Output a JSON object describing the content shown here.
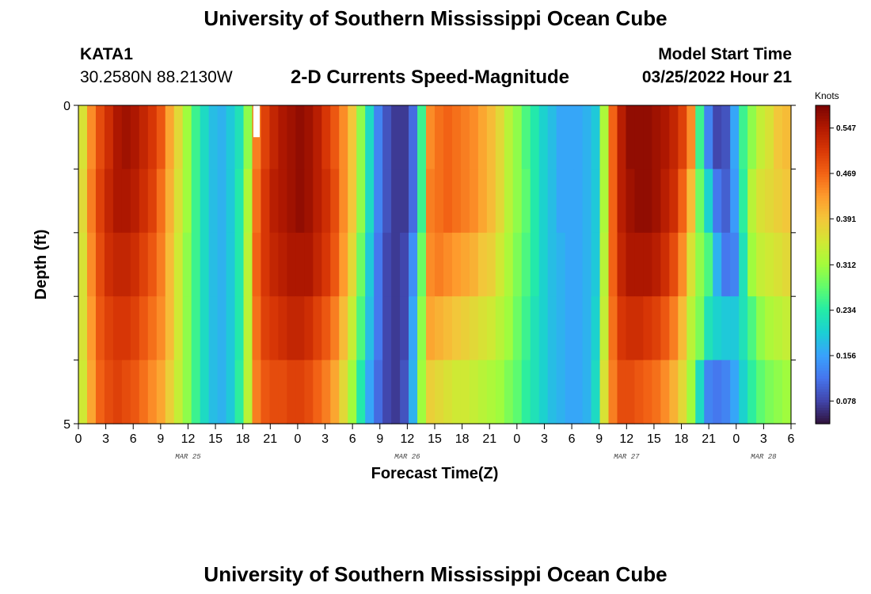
{
  "header": {
    "title": "University of Southern Mississippi Ocean Cube",
    "station_id": "KATA1",
    "coordinates": "30.2580N  88.2130W",
    "chart_title": "2-D Currents Speed-Magnitude",
    "model_start_label": "Model Start Time",
    "model_start_value": "03/25/2022 Hour 21"
  },
  "footer": {
    "title": "University of Southern Mississippi Ocean Cube"
  },
  "colors": {
    "colormap": [
      "#30123b",
      "#4145ab",
      "#4675ed",
      "#39a2fc",
      "#1bcfd4",
      "#24eca6",
      "#61fc6c",
      "#a4fc3b",
      "#d1e834",
      "#f3c63a",
      "#fe9b2d",
      "#f36315",
      "#d93806",
      "#b11901",
      "#7a0402"
    ],
    "gap": "#ffffff"
  },
  "chart_data": {
    "type": "heatmap",
    "title": "2-D Currents Speed-Magnitude",
    "xlabel": "Forecast Time(Z)",
    "ylabel": "Depth (ft)",
    "x_start_hour": 0,
    "x_end_hour": 78,
    "x_tick_step_hours": 3,
    "x_tick_labels": [
      "0",
      "3",
      "6",
      "9",
      "12",
      "15",
      "18",
      "21",
      "0",
      "3",
      "6",
      "9",
      "12",
      "15",
      "18",
      "21",
      "0",
      "3",
      "6",
      "9",
      "12",
      "15",
      "18",
      "21",
      "0",
      "3",
      "6"
    ],
    "date_labels": [
      {
        "hour": 12,
        "text": "MAR 25"
      },
      {
        "hour": 36,
        "text": "MAR 26"
      },
      {
        "hour": 60,
        "text": "MAR 27"
      },
      {
        "hour": 75,
        "text": "MAR 28"
      }
    ],
    "y_range_ft": [
      0,
      5
    ],
    "y_tick_labels": [
      "0",
      "5"
    ],
    "y_minor_ticks": 6,
    "depth_levels": 5,
    "colorbar": {
      "title": "Knots",
      "min": 0.039,
      "max": 0.586,
      "tick_values": [
        0.078,
        0.156,
        0.234,
        0.312,
        0.391,
        0.469,
        0.547
      ],
      "tick_labels": [
        "0.078",
        "0.156",
        "0.234",
        "0.312",
        "0.391",
        "0.469",
        "0.547"
      ]
    },
    "missing_cells": [
      {
        "hour": 20,
        "level": 0
      }
    ],
    "rows": [
      [
        0.36,
        0.44,
        0.49,
        0.52,
        0.55,
        0.56,
        0.55,
        0.53,
        0.51,
        0.48,
        0.42,
        0.37,
        0.31,
        0.25,
        0.21,
        0.18,
        0.17,
        0.19,
        0.22,
        0.3,
        0.45,
        0.5,
        0.53,
        0.55,
        0.56,
        0.57,
        0.56,
        0.54,
        0.51,
        0.48,
        0.44,
        0.39,
        0.3,
        0.21,
        0.13,
        0.09,
        0.07,
        0.07,
        0.11,
        0.25,
        0.44,
        0.46,
        0.47,
        0.46,
        0.45,
        0.44,
        0.42,
        0.4,
        0.37,
        0.33,
        0.3,
        0.26,
        0.23,
        0.2,
        0.18,
        0.16,
        0.16,
        0.16,
        0.17,
        0.19,
        0.32,
        0.47,
        0.54,
        0.57,
        0.57,
        0.57,
        0.56,
        0.55,
        0.53,
        0.5,
        0.44,
        0.25,
        0.13,
        0.08,
        0.09,
        0.16,
        0.25,
        0.3,
        0.34,
        0.36,
        0.39,
        0.4
      ],
      [
        0.37,
        0.45,
        0.5,
        0.53,
        0.55,
        0.55,
        0.54,
        0.52,
        0.5,
        0.46,
        0.41,
        0.36,
        0.31,
        0.25,
        0.21,
        0.18,
        0.17,
        0.19,
        0.23,
        0.32,
        0.46,
        0.51,
        0.54,
        0.55,
        0.56,
        0.57,
        0.56,
        0.54,
        0.52,
        0.49,
        0.44,
        0.39,
        0.3,
        0.21,
        0.13,
        0.09,
        0.07,
        0.07,
        0.11,
        0.25,
        0.45,
        0.46,
        0.47,
        0.46,
        0.45,
        0.44,
        0.42,
        0.4,
        0.37,
        0.33,
        0.3,
        0.27,
        0.23,
        0.2,
        0.18,
        0.16,
        0.16,
        0.16,
        0.17,
        0.19,
        0.32,
        0.47,
        0.54,
        0.56,
        0.57,
        0.57,
        0.56,
        0.54,
        0.52,
        0.47,
        0.4,
        0.28,
        0.2,
        0.12,
        0.1,
        0.15,
        0.24,
        0.33,
        0.36,
        0.37,
        0.38,
        0.39
      ],
      [
        0.36,
        0.44,
        0.49,
        0.52,
        0.53,
        0.53,
        0.52,
        0.5,
        0.48,
        0.45,
        0.4,
        0.35,
        0.3,
        0.25,
        0.21,
        0.18,
        0.17,
        0.19,
        0.23,
        0.33,
        0.47,
        0.51,
        0.53,
        0.54,
        0.55,
        0.55,
        0.55,
        0.53,
        0.51,
        0.48,
        0.43,
        0.37,
        0.28,
        0.19,
        0.12,
        0.08,
        0.07,
        0.08,
        0.14,
        0.28,
        0.44,
        0.45,
        0.44,
        0.43,
        0.42,
        0.41,
        0.39,
        0.38,
        0.35,
        0.32,
        0.29,
        0.26,
        0.23,
        0.2,
        0.18,
        0.17,
        0.16,
        0.16,
        0.17,
        0.19,
        0.33,
        0.47,
        0.53,
        0.55,
        0.55,
        0.55,
        0.54,
        0.52,
        0.49,
        0.44,
        0.36,
        0.3,
        0.26,
        0.17,
        0.12,
        0.13,
        0.22,
        0.31,
        0.34,
        0.35,
        0.36,
        0.37
      ],
      [
        0.36,
        0.43,
        0.48,
        0.5,
        0.51,
        0.51,
        0.5,
        0.48,
        0.46,
        0.44,
        0.4,
        0.35,
        0.3,
        0.25,
        0.21,
        0.18,
        0.17,
        0.19,
        0.23,
        0.33,
        0.46,
        0.5,
        0.51,
        0.52,
        0.53,
        0.53,
        0.52,
        0.5,
        0.48,
        0.45,
        0.4,
        0.34,
        0.26,
        0.18,
        0.12,
        0.08,
        0.07,
        0.08,
        0.16,
        0.3,
        0.42,
        0.41,
        0.4,
        0.39,
        0.38,
        0.37,
        0.36,
        0.35,
        0.33,
        0.31,
        0.28,
        0.25,
        0.22,
        0.2,
        0.18,
        0.17,
        0.16,
        0.16,
        0.17,
        0.2,
        0.34,
        0.46,
        0.51,
        0.52,
        0.52,
        0.51,
        0.5,
        0.48,
        0.45,
        0.4,
        0.33,
        0.29,
        0.22,
        0.2,
        0.19,
        0.19,
        0.22,
        0.26,
        0.3,
        0.32,
        0.33,
        0.34
      ],
      [
        0.35,
        0.42,
        0.47,
        0.49,
        0.5,
        0.49,
        0.48,
        0.46,
        0.44,
        0.42,
        0.38,
        0.34,
        0.3,
        0.25,
        0.21,
        0.18,
        0.17,
        0.19,
        0.24,
        0.33,
        0.45,
        0.48,
        0.49,
        0.49,
        0.5,
        0.5,
        0.49,
        0.47,
        0.45,
        0.42,
        0.37,
        0.31,
        0.23,
        0.16,
        0.11,
        0.08,
        0.07,
        0.09,
        0.17,
        0.31,
        0.38,
        0.37,
        0.36,
        0.35,
        0.35,
        0.34,
        0.33,
        0.32,
        0.31,
        0.29,
        0.27,
        0.24,
        0.22,
        0.2,
        0.18,
        0.17,
        0.16,
        0.16,
        0.17,
        0.21,
        0.36,
        0.45,
        0.49,
        0.49,
        0.48,
        0.47,
        0.46,
        0.44,
        0.41,
        0.37,
        0.31,
        0.21,
        0.13,
        0.12,
        0.13,
        0.16,
        0.2,
        0.24,
        0.27,
        0.29,
        0.3,
        0.31
      ]
    ]
  }
}
